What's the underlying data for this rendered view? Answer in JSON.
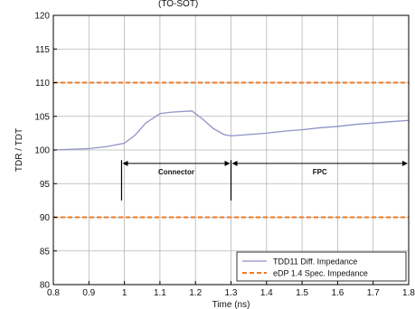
{
  "chart_data": {
    "type": "line",
    "title": "(TO-SOT)",
    "xlabel": "Time (ns)",
    "ylabel": "TDR / TDT",
    "xlim": [
      0.8,
      1.8
    ],
    "ylim": [
      80,
      120
    ],
    "xticks": [
      "0.8",
      "0.9",
      "1",
      "1.1",
      "1.2",
      "1.3",
      "1.4",
      "1.5",
      "1.6",
      "1.7",
      "1.8"
    ],
    "yticks": [
      "80",
      "85",
      "90",
      "95",
      "100",
      "105",
      "110",
      "115",
      "120"
    ],
    "grid": true,
    "legend_position": "bottom-right",
    "series": [
      {
        "name": "TDD11 Diff. Impedance",
        "color": "#8f92c8",
        "style": "solid",
        "x": [
          0.8,
          0.85,
          0.9,
          0.95,
          1.0,
          1.03,
          1.06,
          1.1,
          1.13,
          1.16,
          1.19,
          1.22,
          1.25,
          1.28,
          1.3,
          1.35,
          1.4,
          1.45,
          1.5,
          1.55,
          1.6,
          1.65,
          1.7,
          1.75,
          1.8
        ],
        "y": [
          100.0,
          100.1,
          100.2,
          100.5,
          101.0,
          102.2,
          104.0,
          105.4,
          105.6,
          105.7,
          105.8,
          104.6,
          103.2,
          102.3,
          102.1,
          102.3,
          102.5,
          102.8,
          103.0,
          103.3,
          103.5,
          103.8,
          104.0,
          104.2,
          104.4
        ]
      },
      {
        "name": "eDP 1.4 Spec. Impedance",
        "color": "#f07a22",
        "style": "dashed",
        "x": [
          0.8,
          1.8,
          null,
          0.8,
          1.8
        ],
        "y": [
          110,
          110,
          null,
          90,
          90
        ]
      }
    ],
    "annotations": [
      {
        "text": "Connector",
        "x_start": 0.992,
        "x_end": 1.3,
        "y": 98
      },
      {
        "text": "FPC",
        "x_start": 1.3,
        "x_end": 1.8,
        "y": 98
      }
    ],
    "region_markers": [
      {
        "x": 0.992,
        "y_top": 98.5,
        "y_bottom": 92.5
      },
      {
        "x": 1.3,
        "y_top": 98.5,
        "y_bottom": 92.5
      }
    ]
  }
}
